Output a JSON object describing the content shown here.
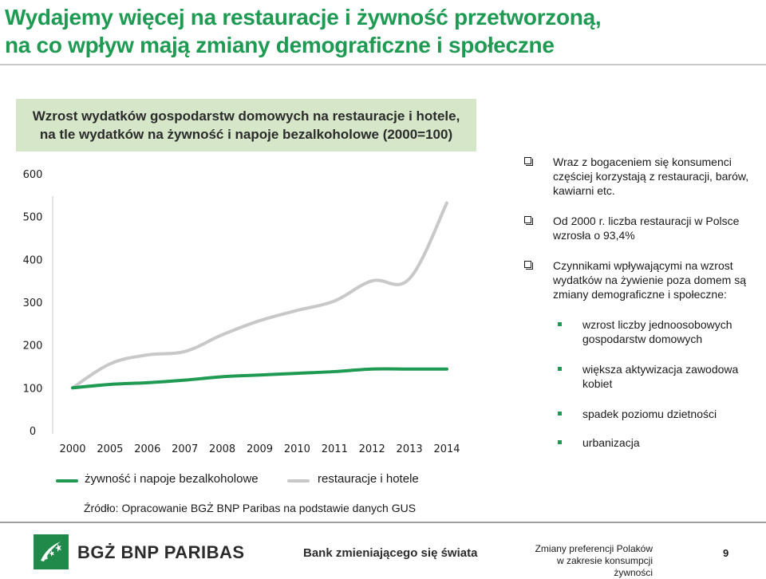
{
  "title_lines": [
    "Wydajemy więcej na restauracje i żywność przetworzoną,",
    "na co wpływ mają zmiany demograficzne i społeczne"
  ],
  "chart_data": {
    "type": "line",
    "title_lines": [
      "Wzrost wydatków gospodarstw domowych na restauracje i hotele,",
      "na tle wydatków na żywność i napoje bezalkoholowe (2000=100)"
    ],
    "categories": [
      "2000",
      "2005",
      "2006",
      "2007",
      "2008",
      "2009",
      "2010",
      "2011",
      "2012",
      "2013",
      "2014"
    ],
    "series": [
      {
        "name": "żywność i napoje bezalkoholowe",
        "color": "#1f9a52",
        "values": [
          100,
          108,
          112,
          118,
          126,
          130,
          134,
          138,
          144,
          144,
          144
        ]
      },
      {
        "name": "restauracje i hotele",
        "color": "#c8c8c8",
        "values": [
          100,
          156,
          177,
          185,
          224,
          257,
          281,
          303,
          350,
          355,
          532
        ]
      }
    ],
    "yticks": [
      "0",
      "100",
      "200",
      "300",
      "400",
      "500",
      "600"
    ],
    "ylim": [
      0,
      600
    ],
    "grid": false
  },
  "bullets": [
    {
      "text": "Wraz z bogaceniem się konsumenci częściej korzystają z restauracji, barów, kawiarni etc."
    },
    {
      "text": "Od 2000 r. liczba restauracji w Polsce wzrosła o 93,4%"
    },
    {
      "text": "Czynnikami wpływającymi na wzrost wydatków na żywienie poza domem są zmiany demograficzne i społeczne:"
    }
  ],
  "sub_bullets": [
    {
      "text": "wzrost liczby jednoosobowych gospodarstw domowych"
    },
    {
      "text": "większa aktywizacja zawodowa kobiet"
    },
    {
      "text": "spadek poziomu dzietności"
    },
    {
      "text": "urbanizacja"
    }
  ],
  "source": "Źródło: Opracowanie BGŻ BNP Paribas na podstawie danych GUS",
  "footer": {
    "brand": "BGŻ BNP PARIBAS",
    "tagline": "Bank zmieniającego się świata",
    "note_lines": [
      "Zmiany preferencji Polaków",
      "w zakresie konsumpcji żywności"
    ],
    "page": "9"
  },
  "colors": {
    "title": "#1f9a52",
    "chart_header_bg": "#d6e6c9",
    "logo": "#1f8a4a"
  }
}
